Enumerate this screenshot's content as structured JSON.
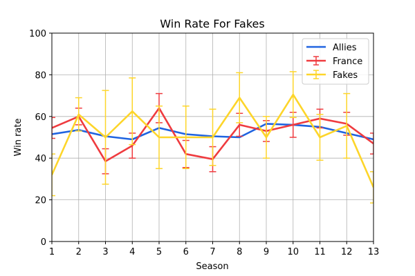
{
  "chart_data": {
    "type": "line",
    "title": "Win Rate For Fakes",
    "xlabel": "Season",
    "ylabel": "Win rate",
    "xlim": [
      1,
      13
    ],
    "ylim": [
      0,
      100
    ],
    "x_ticks": [
      1,
      2,
      3,
      4,
      5,
      6,
      7,
      8,
      9,
      10,
      11,
      12,
      13
    ],
    "y_ticks": [
      0,
      20,
      40,
      60,
      80,
      100
    ],
    "grid": true,
    "legend_position": "top-right",
    "series": [
      {
        "name": "Allies",
        "color": "#1f63e0",
        "error_bars": false,
        "x": [
          1,
          2,
          3,
          4,
          5,
          6,
          7,
          8,
          9,
          10,
          11,
          12,
          13
        ],
        "y": [
          51.5,
          53.5,
          50.5,
          49,
          54.5,
          51.5,
          50.5,
          50,
          56.5,
          56,
          55,
          52,
          49
        ]
      },
      {
        "name": "France",
        "color": "#ef3b3f",
        "error_bars": true,
        "x": [
          1,
          2,
          3,
          4,
          5,
          6,
          7,
          8,
          9,
          10,
          11,
          12,
          13
        ],
        "y": [
          54.5,
          60,
          38.5,
          46,
          64,
          42,
          39.5,
          56,
          53,
          56,
          59,
          56.5,
          47
        ],
        "err": [
          5,
          4,
          6,
          6,
          7,
          6.5,
          6,
          5.5,
          5,
          6,
          4.5,
          5.5,
          5
        ]
      },
      {
        "name": "Fakes",
        "color": "#fdd52a",
        "error_bars": true,
        "x": [
          1,
          2,
          3,
          4,
          5,
          6,
          7,
          8,
          9,
          10,
          11,
          12,
          13
        ],
        "y": [
          32,
          61,
          50,
          62.5,
          50,
          50,
          50,
          69,
          50,
          70.5,
          50,
          55.5,
          26
        ],
        "err": [
          10,
          8,
          22.5,
          16,
          15,
          15,
          13.5,
          12,
          10,
          11,
          11,
          15.5,
          7.5
        ]
      }
    ]
  }
}
